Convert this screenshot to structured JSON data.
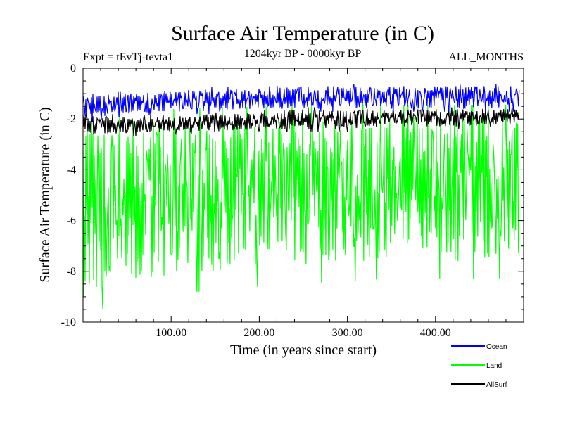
{
  "chart_data": {
    "type": "line",
    "title": "Surface Air Temperature (in C)",
    "subtitle": "1204kyr BP - 0000kyr BP",
    "annotation_left": "Expt = tEvTj-tevta1",
    "annotation_right": "ALL_MONTHS",
    "xlabel": "Time (in years since start)",
    "ylabel": "Surface Air Temperature (in C)",
    "xlim": [
      0,
      500
    ],
    "ylim": [
      -10,
      0
    ],
    "x_ticks": [
      {
        "value": 100,
        "label": "100.00"
      },
      {
        "value": 200,
        "label": "200.00"
      },
      {
        "value": 300,
        "label": "300.00"
      },
      {
        "value": 400,
        "label": "400.00"
      }
    ],
    "y_ticks": [
      {
        "value": 0,
        "label": "0"
      },
      {
        "value": -2,
        "label": "-2"
      },
      {
        "value": -4,
        "label": "-4"
      },
      {
        "value": -6,
        "label": "-6"
      },
      {
        "value": -8,
        "label": "-8"
      },
      {
        "value": -10,
        "label": "-10"
      }
    ],
    "legend_position": "bottom-right",
    "series": [
      {
        "name": "Ocean",
        "color": "#0000ff",
        "x": [
          0,
          50,
          100,
          150,
          200,
          250,
          300,
          350,
          400,
          450,
          495
        ],
        "upper": [
          -1.0,
          -1.0,
          -0.9,
          -0.8,
          -0.8,
          -0.7,
          -0.7,
          -0.7,
          -0.7,
          -0.7,
          -0.7
        ],
        "lower": [
          -2.0,
          -1.8,
          -1.7,
          -1.7,
          -1.6,
          -1.6,
          -1.6,
          -1.6,
          -1.6,
          -1.6,
          -1.6
        ]
      },
      {
        "name": "Land",
        "color": "#00ff00",
        "x": [
          0,
          50,
          100,
          150,
          200,
          250,
          300,
          350,
          400,
          450,
          495
        ],
        "upper": [
          -2.0,
          -2.0,
          -2.1,
          -2.0,
          -2.0,
          -1.9,
          -1.9,
          -1.9,
          -1.9,
          -1.9,
          -1.9
        ],
        "lower": [
          -9.0,
          -8.3,
          -8.2,
          -8.0,
          -7.9,
          -7.8,
          -7.7,
          -7.6,
          -7.6,
          -7.6,
          -7.6
        ]
      },
      {
        "name": "AllSurf",
        "color": "#000000",
        "x": [
          0,
          50,
          100,
          150,
          200,
          250,
          300,
          350,
          400,
          450,
          495
        ],
        "upper": [
          -1.8,
          -1.9,
          -1.9,
          -1.8,
          -1.7,
          -1.6,
          -1.6,
          -1.6,
          -1.6,
          -1.6,
          -1.6
        ],
        "lower": [
          -2.6,
          -2.6,
          -2.5,
          -2.5,
          -2.4,
          -2.4,
          -2.4,
          -2.3,
          -2.3,
          -2.3,
          -2.3
        ]
      }
    ]
  }
}
